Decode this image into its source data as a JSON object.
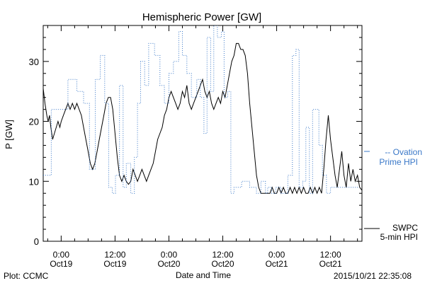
{
  "chart_data": {
    "type": "line",
    "title": "Hemispheric Power [GW]",
    "xlabel": "Date and Time",
    "ylabel": "P [GW]",
    "ylim": [
      0,
      36
    ],
    "yticks": [
      0,
      10,
      20,
      30
    ],
    "xlim": [
      -4,
      67
    ],
    "x_unit": "hours since 2015-10-19 00:00",
    "xticks": [
      {
        "x": 0,
        "label": [
          "0:00",
          "Oct19"
        ]
      },
      {
        "x": 12,
        "label": [
          "12:00",
          "Oct19"
        ]
      },
      {
        "x": 24,
        "label": [
          "0:00",
          "Oct20"
        ]
      },
      {
        "x": 36,
        "label": [
          "12:00",
          "Oct20"
        ]
      },
      {
        "x": 48,
        "label": [
          "0:00",
          "Oct21"
        ]
      },
      {
        "x": 60,
        "label": [
          "12:00",
          "Oct21"
        ]
      }
    ],
    "grid": false,
    "legend": "right",
    "series": [
      {
        "name": "SWPC 5-min HPI",
        "color": "#000000",
        "style": "solid",
        "legend_label": [
          "SWPC",
          "5-min HPI"
        ],
        "points": [
          [
            -4,
            25.5
          ],
          [
            -3.6,
            23
          ],
          [
            -3.2,
            21
          ],
          [
            -2.9,
            20
          ],
          [
            -2.6,
            21
          ],
          [
            -2.3,
            19
          ],
          [
            -1.9,
            17
          ],
          [
            -1.5,
            18
          ],
          [
            -1.1,
            19
          ],
          [
            -0.7,
            20
          ],
          [
            -0.3,
            19
          ],
          [
            0,
            20
          ],
          [
            0.5,
            21
          ],
          [
            1,
            22
          ],
          [
            1.5,
            23
          ],
          [
            2,
            22
          ],
          [
            2.5,
            23
          ],
          [
            3,
            22
          ],
          [
            3.5,
            23
          ],
          [
            4,
            22
          ],
          [
            4.5,
            21
          ],
          [
            5,
            19
          ],
          [
            5.5,
            17
          ],
          [
            6,
            15
          ],
          [
            6.5,
            13
          ],
          [
            7,
            12
          ],
          [
            7.5,
            13
          ],
          [
            8,
            15
          ],
          [
            8.5,
            17
          ],
          [
            9,
            19
          ],
          [
            9.5,
            21
          ],
          [
            10,
            23
          ],
          [
            10.5,
            24
          ],
          [
            11,
            24
          ],
          [
            11.5,
            22
          ],
          [
            12,
            18
          ],
          [
            12.5,
            14
          ],
          [
            13,
            11
          ],
          [
            13.5,
            10
          ],
          [
            14,
            11
          ],
          [
            14.5,
            10
          ],
          [
            15,
            9.5
          ],
          [
            15.5,
            10
          ],
          [
            16,
            12
          ],
          [
            16.5,
            11
          ],
          [
            17,
            10
          ],
          [
            17.5,
            11
          ],
          [
            18,
            12
          ],
          [
            18.5,
            11
          ],
          [
            19,
            10
          ],
          [
            19.5,
            11
          ],
          [
            20,
            12
          ],
          [
            20.5,
            13
          ],
          [
            21,
            15
          ],
          [
            21.5,
            17
          ],
          [
            22,
            18
          ],
          [
            22.5,
            19
          ],
          [
            23,
            21
          ],
          [
            23.5,
            22
          ],
          [
            24,
            24
          ],
          [
            24.5,
            25
          ],
          [
            25,
            24
          ],
          [
            25.5,
            23
          ],
          [
            26,
            22
          ],
          [
            26.5,
            23
          ],
          [
            27,
            25
          ],
          [
            27.5,
            24
          ],
          [
            28,
            26
          ],
          [
            28.5,
            23
          ],
          [
            29,
            22
          ],
          [
            29.5,
            23
          ],
          [
            30,
            24
          ],
          [
            30.5,
            25
          ],
          [
            31,
            26
          ],
          [
            31.5,
            27
          ],
          [
            32,
            25
          ],
          [
            32.5,
            24
          ],
          [
            33,
            25
          ],
          [
            33.5,
            23
          ],
          [
            34,
            22
          ],
          [
            34.5,
            23
          ],
          [
            35,
            24
          ],
          [
            35.5,
            23
          ],
          [
            36,
            25
          ],
          [
            36.5,
            24
          ],
          [
            37,
            26
          ],
          [
            37.5,
            28
          ],
          [
            38,
            30
          ],
          [
            38.5,
            31
          ],
          [
            39,
            33
          ],
          [
            39.5,
            33
          ],
          [
            40,
            32
          ],
          [
            40.5,
            32
          ],
          [
            41,
            31
          ],
          [
            41.5,
            28
          ],
          [
            42,
            23
          ],
          [
            42.5,
            19
          ],
          [
            43,
            15
          ],
          [
            43.5,
            11
          ],
          [
            44,
            9
          ],
          [
            44.5,
            8
          ],
          [
            45,
            8
          ],
          [
            45.5,
            8
          ],
          [
            46,
            8
          ],
          [
            46.5,
            8
          ],
          [
            47,
            9
          ],
          [
            47.5,
            8
          ],
          [
            48,
            8
          ],
          [
            48.5,
            9
          ],
          [
            49,
            8
          ],
          [
            49.5,
            9
          ],
          [
            50,
            8
          ],
          [
            50.5,
            8
          ],
          [
            51,
            9
          ],
          [
            51.5,
            8
          ],
          [
            52,
            9
          ],
          [
            52.5,
            8
          ],
          [
            53,
            9
          ],
          [
            53.5,
            8
          ],
          [
            54,
            9
          ],
          [
            54.5,
            8
          ],
          [
            55,
            8
          ],
          [
            55.5,
            9
          ],
          [
            56,
            8
          ],
          [
            56.5,
            9
          ],
          [
            57,
            8
          ],
          [
            57.5,
            9
          ],
          [
            58,
            8
          ],
          [
            58.5,
            12
          ],
          [
            59,
            17
          ],
          [
            59.5,
            21
          ],
          [
            60,
            17
          ],
          [
            60.5,
            14
          ],
          [
            61,
            11
          ],
          [
            61.5,
            9
          ],
          [
            62,
            12
          ],
          [
            62.5,
            15
          ],
          [
            63,
            11
          ],
          [
            63.5,
            9
          ],
          [
            64,
            13
          ],
          [
            64.5,
            10
          ],
          [
            65,
            12
          ],
          [
            65.5,
            10
          ],
          [
            66,
            11
          ],
          [
            66.5,
            9
          ],
          [
            67,
            8.5
          ]
        ]
      },
      {
        "name": "Ovation Prime HPI",
        "color": "#3a78c8",
        "style": "dotted-steps",
        "legend_label": [
          "-- Ovation",
          "Prime HPI"
        ],
        "points": [
          [
            -4,
            11
          ],
          [
            -2.2,
            22
          ],
          [
            1.5,
            27
          ],
          [
            3.5,
            25
          ],
          [
            5,
            23
          ],
          [
            6.3,
            12
          ],
          [
            7.6,
            27
          ],
          [
            8.7,
            31
          ],
          [
            9.7,
            23
          ],
          [
            10.6,
            9
          ],
          [
            11.4,
            8
          ],
          [
            12.1,
            11
          ],
          [
            13,
            26
          ],
          [
            13.8,
            9
          ],
          [
            14.5,
            13
          ],
          [
            15.5,
            8
          ],
          [
            16.3,
            14
          ],
          [
            17,
            23
          ],
          [
            17.7,
            30
          ],
          [
            18.6,
            26
          ],
          [
            19.5,
            33
          ],
          [
            20.8,
            31
          ],
          [
            22,
            26
          ],
          [
            23,
            23
          ],
          [
            24,
            28
          ],
          [
            25,
            30
          ],
          [
            26.2,
            35
          ],
          [
            27,
            31
          ],
          [
            28,
            28
          ],
          [
            29,
            24
          ],
          [
            30.2,
            27
          ],
          [
            31,
            24
          ],
          [
            31.8,
            18
          ],
          [
            32.5,
            34
          ],
          [
            33.3,
            25
          ],
          [
            34,
            36
          ],
          [
            34.8,
            34
          ],
          [
            35.7,
            35
          ],
          [
            36.3,
            24
          ],
          [
            37.1,
            25
          ],
          [
            37.8,
            8
          ],
          [
            38.5,
            9
          ],
          [
            40.2,
            10
          ],
          [
            42,
            9
          ],
          [
            43.5,
            8
          ],
          [
            44.5,
            10
          ],
          [
            45.5,
            8
          ],
          [
            46,
            9
          ],
          [
            46.9,
            8
          ],
          [
            47.8,
            9
          ],
          [
            49,
            8
          ],
          [
            50.5,
            11
          ],
          [
            51.5,
            31
          ],
          [
            52.3,
            32
          ],
          [
            53,
            9
          ],
          [
            53.8,
            10
          ],
          [
            54.5,
            19
          ],
          [
            55.3,
            8
          ],
          [
            56,
            22
          ],
          [
            57.4,
            16
          ],
          [
            58.2,
            11
          ],
          [
            59.1,
            8
          ],
          [
            60,
            9
          ],
          [
            66.4,
            9
          ]
        ]
      }
    ]
  },
  "footer": {
    "left": "Plot: CCMC",
    "timestamp": "2015/10/21 22:35:08"
  }
}
